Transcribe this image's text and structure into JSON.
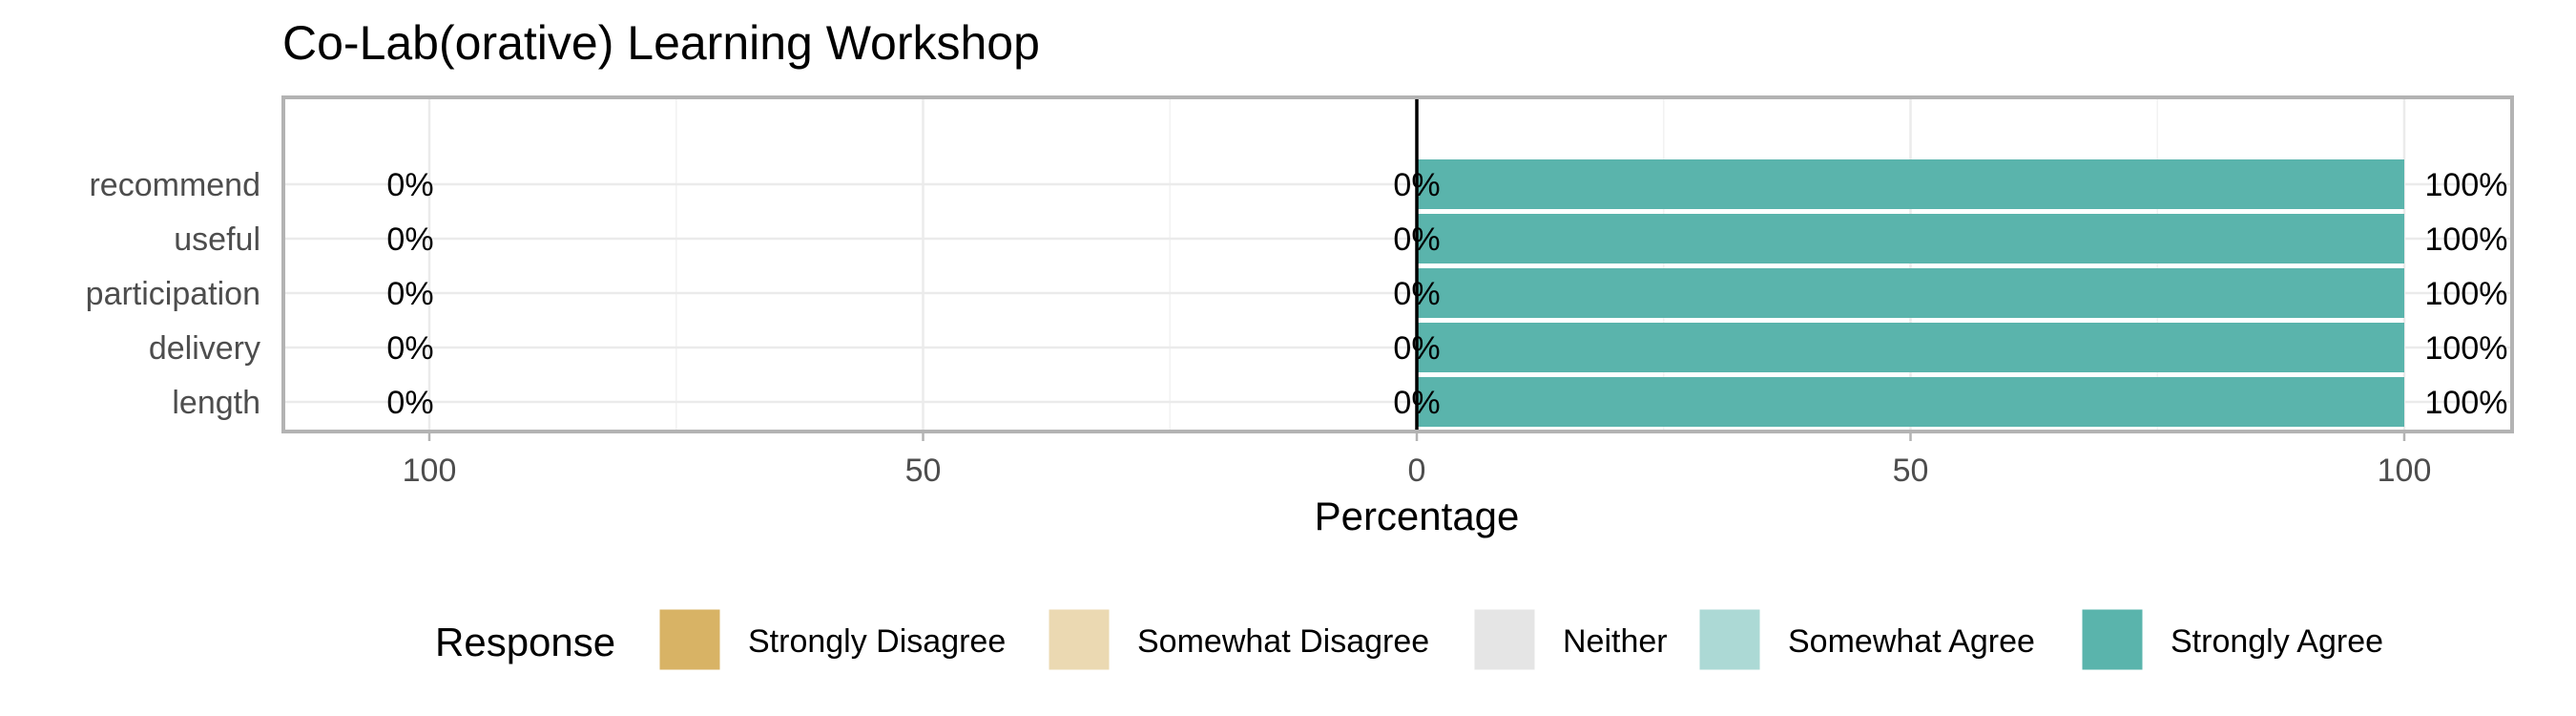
{
  "chart_data": {
    "type": "bar",
    "title": "Co-Lab(orative) Learning Workshop",
    "xlabel": "Percentage",
    "ylabel": "",
    "categories": [
      "recommend",
      "useful",
      "participation",
      "delivery",
      "length"
    ],
    "x_ticks": [
      100,
      50,
      0,
      50,
      100
    ],
    "xlim": [
      -100,
      100
    ],
    "grid": true,
    "series": [
      {
        "name": "Strongly Disagree",
        "color": "#d8b365",
        "values": [
          0,
          0,
          0,
          0,
          0
        ]
      },
      {
        "name": "Somewhat Disagree",
        "color": "#ebd9b2",
        "values": [
          0,
          0,
          0,
          0,
          0
        ]
      },
      {
        "name": "Neither",
        "color": "#e5e5e5",
        "values": [
          0,
          0,
          0,
          0,
          0
        ]
      },
      {
        "name": "Somewhat Agree",
        "color": "#acd9d5",
        "values": [
          0,
          0,
          0,
          0,
          0
        ]
      },
      {
        "name": "Strongly Agree",
        "color": "#5ab4ac",
        "values": [
          100,
          100,
          100,
          100,
          100
        ]
      }
    ],
    "labels_left": [
      "0%",
      "0%",
      "0%",
      "0%",
      "0%"
    ],
    "labels_center": [
      "0%",
      "0%",
      "0%",
      "0%",
      "0%"
    ],
    "labels_right": [
      "100%",
      "100%",
      "100%",
      "100%",
      "100%"
    ],
    "legend": {
      "title": "Response",
      "position": "bottom",
      "items": [
        "Strongly Disagree",
        "Somewhat Disagree",
        "Neither",
        "Somewhat Agree",
        "Strongly Agree"
      ]
    }
  }
}
